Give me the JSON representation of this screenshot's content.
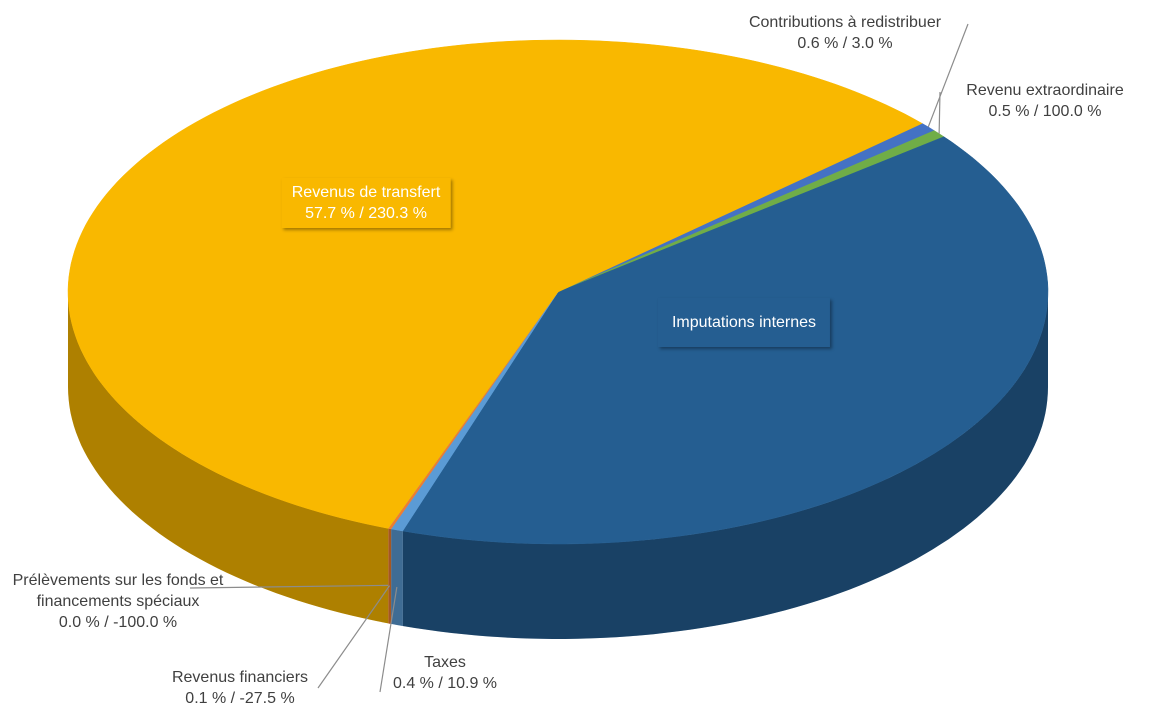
{
  "chart_data": {
    "type": "pie",
    "categories": [
      "Contributions à redistribuer",
      "Revenu extraordinaire",
      "Imputations internes",
      "Taxes",
      "Revenus financiers",
      "Prélèvements sur les fonds et financements spéciaux",
      "Revenus de transfert"
    ],
    "values": [
      0.6,
      0.5,
      40.7,
      0.4,
      0.1,
      0.0,
      57.7
    ],
    "value_labels": [
      "0.6 % / 3.0 %",
      "0.5 % / 100.0 %",
      null,
      "0.4 % / 10.9 %",
      "0.1 % / -27.5 %",
      "0.0 % / -100.0 %",
      "57.7 % / 230.3 %"
    ],
    "colors": [
      "#4472c4",
      "#70ad47",
      "#255e91",
      "#5b9bd5",
      "#ed7d31",
      "#a5a5a5",
      "#f9b800"
    ]
  }
}
